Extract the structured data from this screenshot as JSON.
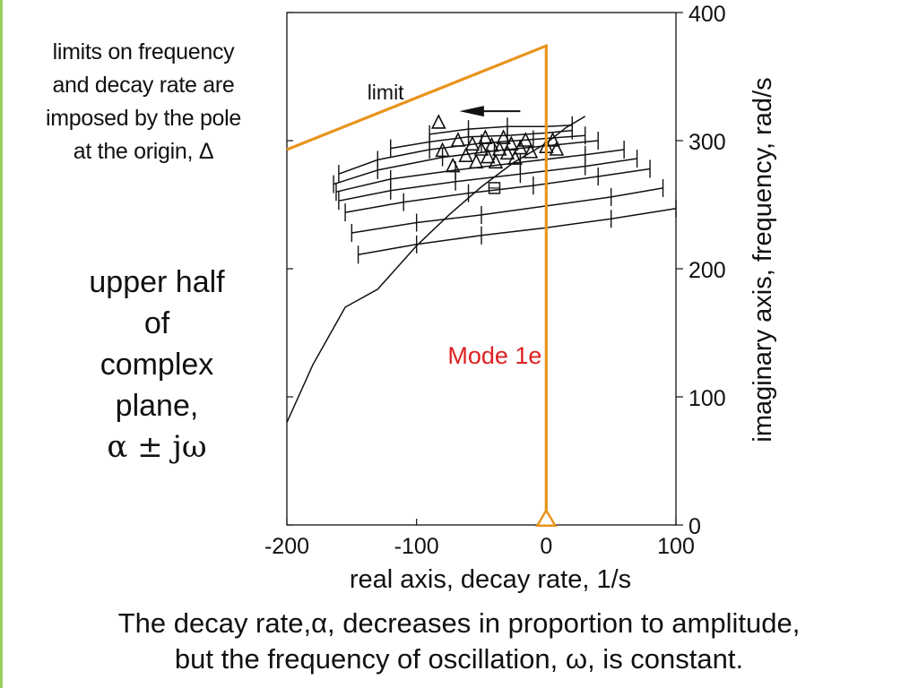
{
  "annotations": {
    "limits_note": [
      "limits on frequency",
      "and decay rate are",
      "imposed by the pole",
      "at the origin, Δ"
    ],
    "plane_note": [
      "upper half",
      "of",
      "complex",
      "plane,",
      "α ± jω"
    ],
    "caption": [
      "The decay rate,α, decreases in proportion to amplitude,",
      "but the frequency of oscillation, ω, is constant."
    ]
  },
  "colors": {
    "limit_line": "#e8941c",
    "mode_label": "#e02020",
    "curves": "#111111",
    "left_bar": "#9bd060"
  },
  "chart_data": {
    "type": "line",
    "xlabel": "real axis, decay rate, 1/s",
    "ylabel": "imaginary axis, frequency, rad/s",
    "xlim": [
      -200,
      100
    ],
    "ylim": [
      0,
      400
    ],
    "x_ticks": [
      -200,
      -100,
      0,
      100
    ],
    "y_ticks": [
      0,
      100,
      200,
      300,
      400
    ],
    "grid": false,
    "annotations": {
      "limit_label": "limit",
      "mode_label": "Mode 1e"
    },
    "limit_line": {
      "x": [
        -200,
        0,
        0
      ],
      "y": [
        293,
        374,
        0
      ]
    },
    "origin_marker": {
      "x": 0,
      "y": 3,
      "symbol": "triangle"
    },
    "root_locus": {
      "x": [
        -200,
        -180,
        -155,
        -130,
        -100,
        -75,
        -50,
        -25,
        0,
        15,
        30
      ],
      "y": [
        80,
        125,
        170,
        184,
        218,
        242,
        264,
        283,
        298,
        310,
        319
      ]
    },
    "square_marker": {
      "x": -40,
      "y": 263
    },
    "curves": [
      {
        "x": [
          -145,
          -100,
          -50,
          0,
          50,
          100
        ],
        "y": [
          211,
          219,
          226,
          232,
          239,
          247
        ]
      },
      {
        "x": [
          -150,
          -100,
          -50,
          0,
          50,
          90
        ],
        "y": [
          228,
          236,
          242,
          249,
          256,
          263
        ]
      },
      {
        "x": [
          -155,
          -110,
          -60,
          -10,
          40,
          80
        ],
        "y": [
          244,
          252,
          259,
          265,
          272,
          278
        ]
      },
      {
        "x": [
          -160,
          -120,
          -70,
          -20,
          30,
          70
        ],
        "y": [
          253,
          261,
          268,
          274,
          280,
          286
        ]
      },
      {
        "x": [
          -162,
          -120,
          -70,
          -20,
          30,
          60
        ],
        "y": [
          260,
          270,
          277,
          283,
          289,
          293
        ]
      },
      {
        "x": [
          -164,
          -130,
          -80,
          -40,
          0,
          40
        ],
        "y": [
          266,
          277,
          287,
          292,
          296,
          300
        ]
      },
      {
        "x": [
          -160,
          -130,
          -90,
          -50,
          -10,
          30
        ],
        "y": [
          274,
          285,
          293,
          298,
          301,
          304
        ]
      },
      {
        "x": [
          -120,
          -90,
          -60,
          -30,
          0,
          20
        ],
        "y": [
          294,
          299,
          303,
          304,
          306,
          308
        ]
      },
      {
        "x": [
          -90,
          -60,
          -30,
          0,
          20
        ],
        "y": [
          305,
          309,
          311,
          311,
          312
        ]
      }
    ],
    "triangle_markers": [
      {
        "x": -83,
        "y": 314
      },
      {
        "x": -80,
        "y": 292
      },
      {
        "x": -72,
        "y": 280
      },
      {
        "x": -68,
        "y": 300
      },
      {
        "x": -62,
        "y": 288
      },
      {
        "x": -57,
        "y": 297
      },
      {
        "x": -54,
        "y": 283
      },
      {
        "x": -50,
        "y": 293
      },
      {
        "x": -47,
        "y": 302
      },
      {
        "x": -45,
        "y": 287
      },
      {
        "x": -42,
        "y": 296
      },
      {
        "x": -39,
        "y": 283
      },
      {
        "x": -36,
        "y": 293
      },
      {
        "x": -33,
        "y": 302
      },
      {
        "x": -30,
        "y": 290
      },
      {
        "x": -27,
        "y": 297
      },
      {
        "x": -24,
        "y": 286
      },
      {
        "x": -20,
        "y": 294
      },
      {
        "x": -16,
        "y": 300
      },
      {
        "x": -12,
        "y": 291
      },
      {
        "x": 0,
        "y": 295
      },
      {
        "x": 5,
        "y": 300
      },
      {
        "x": 8,
        "y": 293
      }
    ]
  }
}
